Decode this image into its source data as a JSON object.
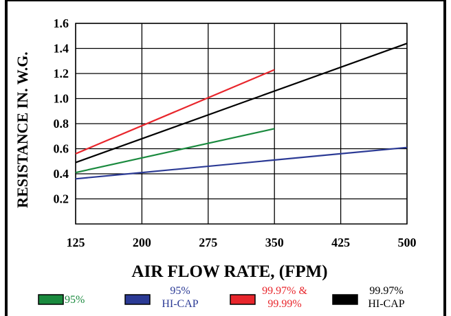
{
  "chart_data": {
    "type": "line",
    "title": "",
    "xlabel": "AIR FLOW RATE, (FPM)",
    "ylabel": "RESISTANCE IN. W.G.",
    "xlim": [
      125,
      500
    ],
    "ylim": [
      0,
      1.6
    ],
    "x_ticks": [
      "125",
      "200",
      "275",
      "350",
      "425",
      "500"
    ],
    "y_ticks": [
      "0.2",
      "0.4",
      "0.6",
      "0.8",
      "1.0",
      "1.2",
      "1.4",
      "1.6"
    ],
    "grid": true,
    "legend_position": "bottom",
    "series": [
      {
        "name": "95%",
        "color": "#1a8a3e",
        "x": [
          125,
          350
        ],
        "y": [
          0.41,
          0.76
        ]
      },
      {
        "name": "95% HI-CAP",
        "color": "#2b3a95",
        "x": [
          125,
          500
        ],
        "y": [
          0.36,
          0.61
        ]
      },
      {
        "name": "99.97% & 99.99%",
        "color": "#e8262c",
        "x": [
          125,
          350
        ],
        "y": [
          0.56,
          1.23
        ]
      },
      {
        "name": "99.97% HI-CAP",
        "color": "#000000",
        "x": [
          125,
          500
        ],
        "y": [
          0.49,
          1.44
        ]
      }
    ],
    "legend": [
      {
        "lines": [
          "95%"
        ],
        "color": "#1a8a3e"
      },
      {
        "lines": [
          "95%",
          "HI-CAP"
        ],
        "color": "#2b3a95"
      },
      {
        "lines": [
          "99.97% &",
          "99.99%"
        ],
        "color": "#e8262c"
      },
      {
        "lines": [
          "99.97%",
          "HI-CAP"
        ],
        "color": "#000000"
      }
    ]
  }
}
